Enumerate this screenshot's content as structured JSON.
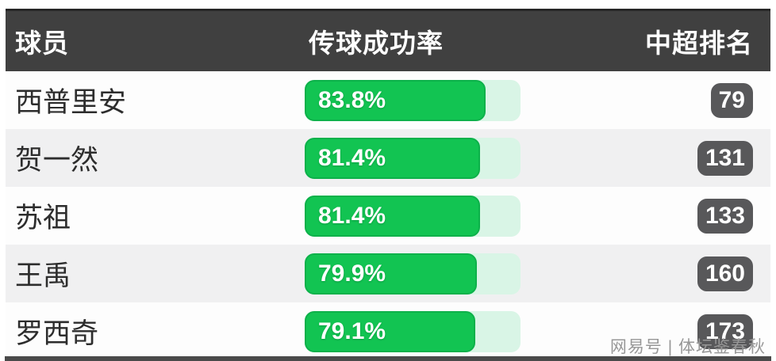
{
  "chart_data": {
    "type": "bar",
    "orientation": "horizontal",
    "title": "",
    "categories": [
      "西普里安",
      "贺一然",
      "苏祖",
      "王禹",
      "罗西奇"
    ],
    "series": [
      {
        "name": "传球成功率",
        "values": [
          83.8,
          81.4,
          81.4,
          79.9,
          79.1
        ],
        "unit": "%"
      },
      {
        "name": "中超排名",
        "values": [
          79,
          131,
          133,
          160,
          173
        ]
      }
    ],
    "xlim": [
      0,
      100
    ],
    "grid": false,
    "legend_position": "none"
  },
  "table": {
    "columns": {
      "player": "球员",
      "pass_rate": "传球成功率",
      "rank": "中超排名"
    },
    "rows": [
      {
        "player": "西普里安",
        "pass_rate_label": "83.8%",
        "pass_rate_value": 83.8,
        "rank": "79"
      },
      {
        "player": "贺一然",
        "pass_rate_label": "81.4%",
        "pass_rate_value": 81.4,
        "rank": "131"
      },
      {
        "player": "苏祖",
        "pass_rate_label": "81.4%",
        "pass_rate_value": 81.4,
        "rank": "133"
      },
      {
        "player": "王禹",
        "pass_rate_label": "79.9%",
        "pass_rate_value": 79.9,
        "rank": "160"
      },
      {
        "player": "罗西奇",
        "pass_rate_label": "79.1%",
        "pass_rate_value": 79.1,
        "rank": "173"
      }
    ]
  },
  "watermark": "网易号 | 体坛鉴春秋",
  "colors": {
    "header_bg": "#404040",
    "header_text": "#ffffff",
    "bar_fill": "#12c452",
    "bar_track": "#d9f5e6",
    "badge_bg": "#58585a",
    "row_alt_bg": "#f0f0f1",
    "watermark_text": "#979797"
  }
}
